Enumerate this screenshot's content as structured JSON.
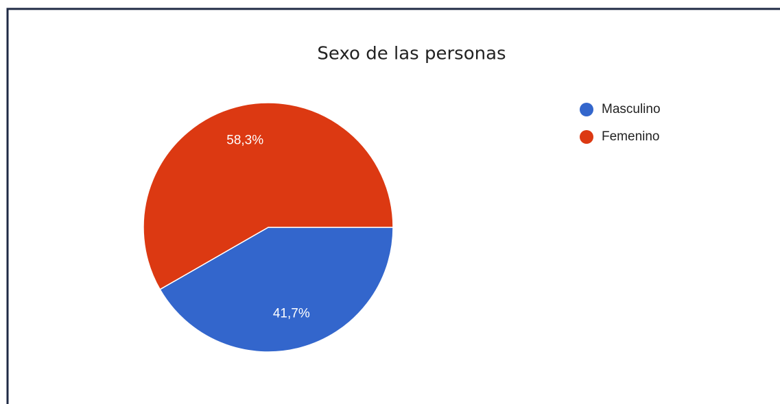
{
  "chart_data": {
    "type": "pie",
    "title": "Sexo de las personas",
    "categories": [
      "Masculino",
      "Femenino"
    ],
    "values": [
      41.7,
      58.3
    ],
    "value_labels": [
      "41,7%",
      "58,3%"
    ],
    "colors": [
      "#3366cc",
      "#dc3912"
    ],
    "legend": "right"
  }
}
